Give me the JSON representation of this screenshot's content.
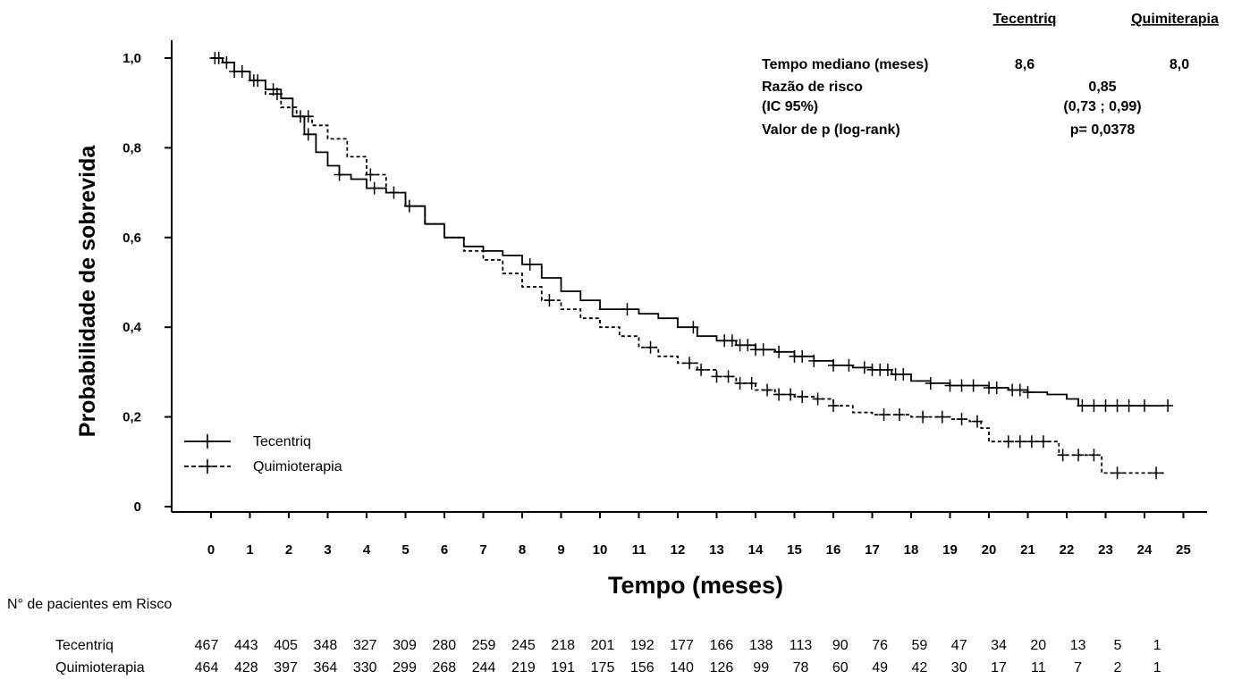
{
  "chart_data": {
    "type": "line",
    "title": "",
    "xlabel": "Tempo (meses)",
    "ylabel": "Probabilidade de sobrevida",
    "xlim": [
      -1,
      25.3
    ],
    "ylim": [
      0,
      1.0
    ],
    "x_ticks": [
      0,
      1,
      2,
      3,
      4,
      5,
      6,
      7,
      8,
      9,
      10,
      11,
      12,
      13,
      14,
      15,
      16,
      17,
      18,
      19,
      20,
      21,
      22,
      23,
      24,
      25
    ],
    "x_tick_labels": [
      "0",
      "1",
      "2",
      "3",
      "4",
      "5",
      "6",
      "7",
      "8",
      "9",
      "10",
      "11",
      "12",
      "13",
      "14",
      "15",
      "16",
      "17",
      "18",
      "19",
      "20",
      "21",
      "22",
      "23",
      "24",
      "25"
    ],
    "y_ticks": [
      0,
      0.2,
      0.4,
      0.6,
      0.8,
      1.0
    ],
    "y_tick_labels": [
      "0",
      "0,2",
      "0,4",
      "0,6",
      "0,8",
      "1,0"
    ],
    "legend_position": "bottom-left",
    "series": [
      {
        "name": "Tecentriq",
        "style": "solid",
        "points": [
          [
            0,
            1.0
          ],
          [
            0.3,
            0.99
          ],
          [
            0.6,
            0.97
          ],
          [
            1.0,
            0.95
          ],
          [
            1.4,
            0.93
          ],
          [
            1.8,
            0.91
          ],
          [
            2.1,
            0.87
          ],
          [
            2.4,
            0.83
          ],
          [
            2.7,
            0.79
          ],
          [
            3.0,
            0.76
          ],
          [
            3.3,
            0.74
          ],
          [
            3.6,
            0.73
          ],
          [
            4.0,
            0.71
          ],
          [
            4.5,
            0.7
          ],
          [
            5.0,
            0.67
          ],
          [
            5.5,
            0.63
          ],
          [
            6.0,
            0.6
          ],
          [
            6.5,
            0.58
          ],
          [
            7.0,
            0.57
          ],
          [
            7.5,
            0.56
          ],
          [
            8.0,
            0.54
          ],
          [
            8.5,
            0.51
          ],
          [
            9.0,
            0.48
          ],
          [
            9.5,
            0.46
          ],
          [
            10.0,
            0.44
          ],
          [
            10.5,
            0.44
          ],
          [
            11.0,
            0.43
          ],
          [
            11.5,
            0.42
          ],
          [
            12.0,
            0.4
          ],
          [
            12.5,
            0.38
          ],
          [
            13.0,
            0.37
          ],
          [
            13.5,
            0.36
          ],
          [
            14.0,
            0.35
          ],
          [
            14.5,
            0.345
          ],
          [
            15.0,
            0.335
          ],
          [
            15.5,
            0.325
          ],
          [
            16.0,
            0.315
          ],
          [
            16.5,
            0.31
          ],
          [
            17.0,
            0.305
          ],
          [
            17.5,
            0.295
          ],
          [
            18.0,
            0.28
          ],
          [
            18.5,
            0.275
          ],
          [
            19.0,
            0.27
          ],
          [
            19.5,
            0.27
          ],
          [
            20.0,
            0.265
          ],
          [
            20.5,
            0.26
          ],
          [
            21.0,
            0.255
          ],
          [
            21.5,
            0.25
          ],
          [
            22.0,
            0.24
          ],
          [
            22.3,
            0.225
          ],
          [
            23.0,
            0.225
          ],
          [
            24.5,
            0.225
          ]
        ],
        "censor": [
          0.1,
          0.4,
          0.8,
          1.2,
          1.6,
          2.3,
          2.5,
          3.3,
          4.2,
          5.1,
          8.2,
          10.7,
          12.4,
          13.2,
          13.4,
          13.6,
          13.8,
          14.0,
          14.2,
          14.6,
          15.0,
          15.2,
          15.5,
          16.0,
          16.4,
          16.8,
          17.0,
          17.2,
          17.4,
          17.6,
          17.8,
          18.5,
          19.0,
          19.3,
          19.6,
          20.0,
          20.2,
          20.6,
          20.8,
          21.0,
          22.4,
          22.7,
          23.0,
          23.3,
          23.6,
          24.0,
          24.6
        ],
        "risk": [
          467,
          443,
          405,
          348,
          327,
          309,
          280,
          259,
          245,
          218,
          201,
          192,
          177,
          166,
          138,
          113,
          90,
          76,
          59,
          47,
          34,
          20,
          13,
          5,
          1
        ]
      },
      {
        "name": "Quimioterapia",
        "style": "dashed",
        "points": [
          [
            0,
            1.0
          ],
          [
            0.3,
            0.99
          ],
          [
            0.6,
            0.97
          ],
          [
            1.0,
            0.95
          ],
          [
            1.4,
            0.92
          ],
          [
            1.8,
            0.89
          ],
          [
            2.2,
            0.87
          ],
          [
            2.6,
            0.85
          ],
          [
            3.0,
            0.82
          ],
          [
            3.5,
            0.78
          ],
          [
            4.0,
            0.74
          ],
          [
            4.5,
            0.7
          ],
          [
            5.0,
            0.67
          ],
          [
            5.5,
            0.63
          ],
          [
            6.0,
            0.6
          ],
          [
            6.5,
            0.57
          ],
          [
            7.0,
            0.55
          ],
          [
            7.5,
            0.52
          ],
          [
            8.0,
            0.49
          ],
          [
            8.5,
            0.46
          ],
          [
            9.0,
            0.44
          ],
          [
            9.5,
            0.42
          ],
          [
            10.0,
            0.4
          ],
          [
            10.5,
            0.38
          ],
          [
            11.0,
            0.355
          ],
          [
            11.5,
            0.335
          ],
          [
            12.0,
            0.32
          ],
          [
            12.5,
            0.305
          ],
          [
            13.0,
            0.29
          ],
          [
            13.5,
            0.275
          ],
          [
            14.0,
            0.26
          ],
          [
            14.5,
            0.25
          ],
          [
            15.0,
            0.245
          ],
          [
            15.5,
            0.24
          ],
          [
            16.0,
            0.225
          ],
          [
            16.5,
            0.21
          ],
          [
            17.0,
            0.205
          ],
          [
            17.5,
            0.205
          ],
          [
            18.0,
            0.2
          ],
          [
            18.5,
            0.2
          ],
          [
            19.0,
            0.195
          ],
          [
            19.5,
            0.19
          ],
          [
            19.8,
            0.175
          ],
          [
            20.0,
            0.145
          ],
          [
            21.0,
            0.145
          ],
          [
            21.6,
            0.145
          ],
          [
            21.8,
            0.115
          ],
          [
            22.8,
            0.115
          ],
          [
            22.9,
            0.075
          ],
          [
            24.5,
            0.075
          ]
        ],
        "censor": [
          0.2,
          0.6,
          1.1,
          1.7,
          2.5,
          4.1,
          4.7,
          8.7,
          11.3,
          12.3,
          12.6,
          13.0,
          13.3,
          13.6,
          13.9,
          14.3,
          14.6,
          14.9,
          15.2,
          15.6,
          16.0,
          17.3,
          17.7,
          18.3,
          18.8,
          19.3,
          19.7,
          20.5,
          20.8,
          21.1,
          21.4,
          21.9,
          22.3,
          22.7,
          23.3,
          24.3
        ],
        "risk": [
          464,
          428,
          397,
          364,
          330,
          299,
          268,
          244,
          219,
          191,
          175,
          156,
          140,
          126,
          99,
          78,
          60,
          49,
          42,
          30,
          17,
          11,
          7,
          2,
          1
        ]
      }
    ],
    "stats": {
      "col_headers": [
        "Tecentriq",
        "Quimiterapia"
      ],
      "rows": [
        {
          "label": "Tempo mediano  (meses)",
          "tecentriq": "8,6",
          "quimio": "8,0"
        },
        {
          "label": "Razão de risco",
          "combined": "0,85"
        },
        {
          "label": "(IC 95%)",
          "combined": "(0,73  ; 0,99)"
        },
        {
          "label": "Valor  de p (log-rank)",
          "combined": "p= 0,0378"
        }
      ]
    },
    "risk_table_title": "N°  de pacientes em Risco"
  }
}
